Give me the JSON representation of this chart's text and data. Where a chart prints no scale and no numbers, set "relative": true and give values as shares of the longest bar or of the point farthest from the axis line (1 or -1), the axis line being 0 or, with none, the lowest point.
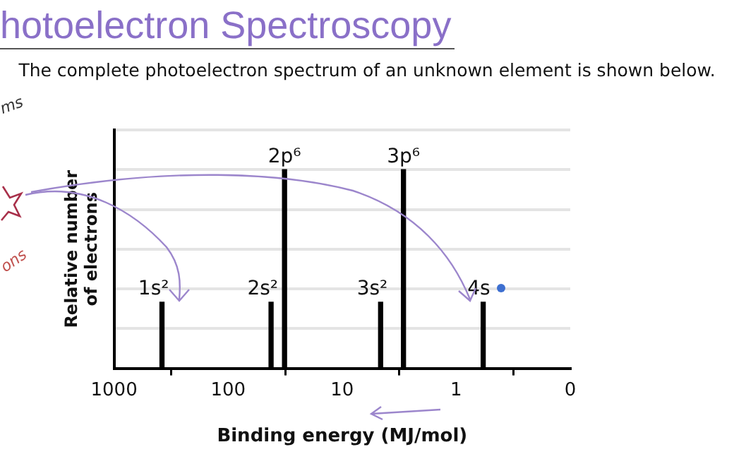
{
  "chart_data": {
    "type": "bar",
    "title": "hotoelectron Spectroscopy",
    "subtitle": "The complete photoelectron spectrum of an unknown element is shown below.",
    "xlabel": "Binding energy (MJ/mol)",
    "ylabel": "Relative number\nof electrons",
    "x": [
      380,
      42,
      32,
      4.6,
      2.9,
      0.58
    ],
    "values": [
      0.333,
      0.333,
      1,
      0.333,
      1,
      0.333
    ],
    "color": "#000000",
    "relative": true,
    "log": "x",
    "xlim": [
      1000,
      0.1
    ],
    "xticks": [
      1000,
      100,
      10,
      1,
      {
        "value": 0.1,
        "label": "0"
      }
    ],
    "grid": "y",
    "legend": false,
    "annotations": [
      {
        "text": "1s²",
        "x": 380,
        "y": 0.333
      },
      {
        "text": "2s²",
        "x": 42,
        "y": 0.333
      },
      {
        "text": "2p⁶",
        "x": 32,
        "y": 1
      },
      {
        "text": "3s²",
        "x": 4.6,
        "y": 0.333
      },
      {
        "text": "3p⁶",
        "x": 2.9,
        "y": 1
      },
      {
        "text": "4s",
        "x": 0.58,
        "y": 0.333
      },
      "ms",
      "ons"
    ]
  }
}
